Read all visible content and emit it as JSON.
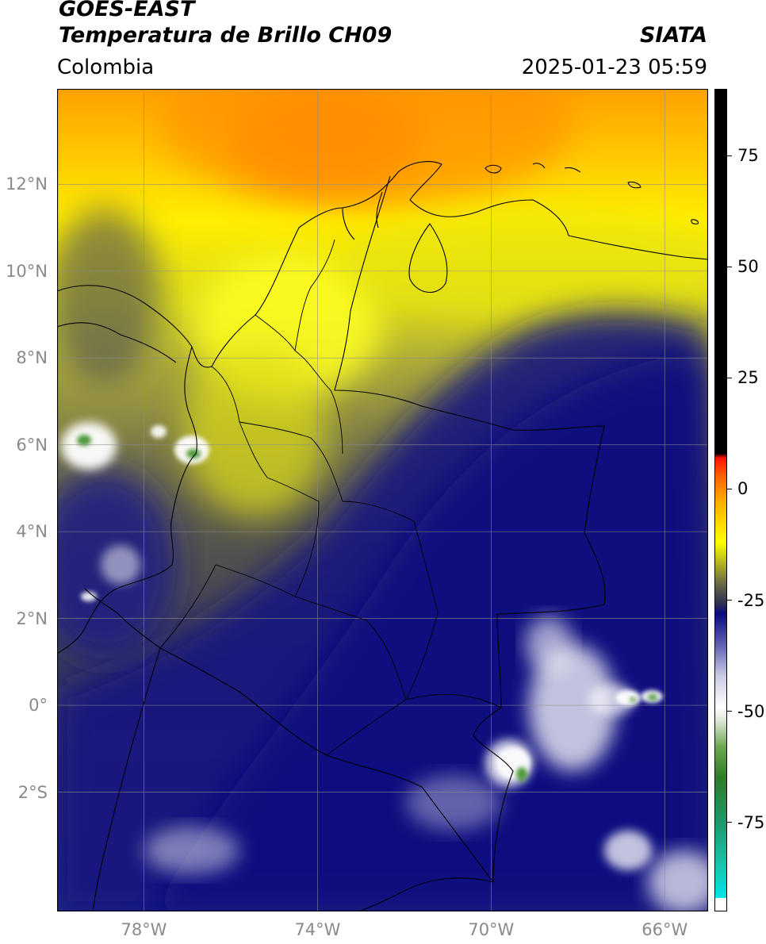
{
  "header": {
    "satellite": "GOES-EAST",
    "product": "Temperatura de Brillo CH09",
    "region": "Colombia",
    "credit": "SIATA",
    "timestamp": "2025-01-23 05:59"
  },
  "map": {
    "extent": {
      "lon_min": -80,
      "lon_max": -65,
      "lat_min": -4.75,
      "lat_max": 14.2
    },
    "lat_ticks": [
      {
        "value": 12,
        "label": "12°N"
      },
      {
        "value": 10,
        "label": "10°N"
      },
      {
        "value": 8,
        "label": "8°N"
      },
      {
        "value": 6,
        "label": "6°N"
      },
      {
        "value": 4,
        "label": "4°N"
      },
      {
        "value": 2,
        "label": "2°N"
      },
      {
        "value": 0,
        "label": "0°"
      },
      {
        "value": -2,
        "label": "2°S"
      }
    ],
    "lon_ticks": [
      {
        "value": -78,
        "label": "78°W"
      },
      {
        "value": -74,
        "label": "74°W"
      },
      {
        "value": -70,
        "label": "70°W"
      },
      {
        "value": -66,
        "label": "66°W"
      }
    ],
    "gridlines": true,
    "colors": {
      "border": "#000000",
      "gridline": "#8c8c8c"
    }
  },
  "colorbar": {
    "range": [
      -95,
      90
    ],
    "ticks": [
      {
        "value": 75,
        "label": "75"
      },
      {
        "value": 50,
        "label": "50"
      },
      {
        "value": 25,
        "label": "25"
      },
      {
        "value": 0,
        "label": "0"
      },
      {
        "value": -25,
        "label": "-25"
      },
      {
        "value": -50,
        "label": "-50"
      },
      {
        "value": -75,
        "label": "-75"
      }
    ],
    "stops": [
      {
        "value": -95,
        "color": "#ffffff"
      },
      {
        "value": -92,
        "color": "#ffffff"
      },
      {
        "value": -91.9,
        "color": "#00e5e5"
      },
      {
        "value": -85,
        "color": "#17c6b0"
      },
      {
        "value": -75,
        "color": "#1c9a6b"
      },
      {
        "value": -65,
        "color": "#2f7d26"
      },
      {
        "value": -58,
        "color": "#6aa84f"
      },
      {
        "value": -52,
        "color": "#dfe8d8"
      },
      {
        "value": -49,
        "color": "#ffffff"
      },
      {
        "value": -42,
        "color": "#c9cbe5"
      },
      {
        "value": -35,
        "color": "#6060b0"
      },
      {
        "value": -28,
        "color": "#0a0a82"
      },
      {
        "value": -26,
        "color": "#2b2b55"
      },
      {
        "value": -22,
        "color": "#606048"
      },
      {
        "value": -18,
        "color": "#9e9e2a"
      },
      {
        "value": -12,
        "color": "#ffff00"
      },
      {
        "value": -3,
        "color": "#ffb000"
      },
      {
        "value": 3,
        "color": "#ff6000"
      },
      {
        "value": 7,
        "color": "#ff1000"
      },
      {
        "value": 8,
        "color": "#000000"
      },
      {
        "value": 90,
        "color": "#000000"
      }
    ]
  }
}
